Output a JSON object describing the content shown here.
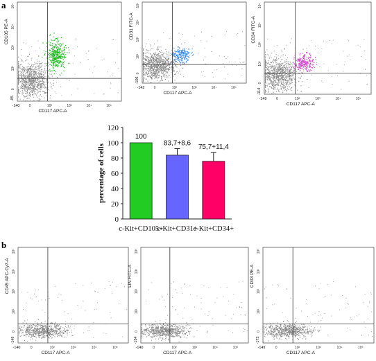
{
  "panel_labels": {
    "a": "a",
    "b": "b"
  },
  "flow_plots": [
    {
      "id": "a1",
      "panel": "a",
      "ylabel": "CD105 PE-A",
      "xlabel": "CD117 APC-A",
      "x_min": "-140",
      "y_min": "-85",
      "highlight_color": "#1fb81f",
      "highlight": "upper-right"
    },
    {
      "id": "a2",
      "panel": "a",
      "ylabel": "CD31 FITC-A",
      "xlabel": "CD117 APC-A",
      "x_min": "-142",
      "y_min": "-106",
      "highlight_color": "#3f8fe8",
      "highlight": "upper-right"
    },
    {
      "id": "a3",
      "panel": "a",
      "ylabel": "CD34 FITC-A",
      "xlabel": "CD117 APC-A",
      "x_min": "-149",
      "y_min": "-114",
      "highlight_color": "#d040c8",
      "highlight": "upper-right"
    },
    {
      "id": "b1",
      "panel": "b",
      "ylabel": "CD45 APC-Cy7-A",
      "xlabel": "CD117 APC-A",
      "x_min": "-140",
      "y_min": "-149",
      "highlight_color": "",
      "highlight": "none"
    },
    {
      "id": "b2",
      "panel": "b",
      "ylabel": "LIN FITC-A",
      "xlabel": "CD117 APC-A",
      "x_min": "-140",
      "y_min": "-134",
      "highlight_color": "",
      "highlight": "none"
    },
    {
      "id": "b3",
      "panel": "b",
      "ylabel": "CD33 PE-A",
      "xlabel": "CD117 APC-A",
      "x_min": "-149",
      "y_min": "-173",
      "highlight_color": "",
      "highlight": "none"
    }
  ],
  "chart_data": {
    "type": "bar",
    "title": "",
    "xlabel": "",
    "ylabel": "percentage of cells",
    "categories": [
      "c-Kit+CD105+",
      "c-Kit+CD31+",
      "c-Kit+CD34+"
    ],
    "values": [
      100,
      83.7,
      75.7
    ],
    "errors": [
      0,
      8.6,
      11.4
    ],
    "data_labels": [
      "100",
      "83,7+8,6",
      "75,7+11,4"
    ],
    "colors": [
      "#22cc22",
      "#6666ff",
      "#ff0066"
    ],
    "ylim": [
      0,
      120
    ],
    "yticks": [
      0,
      20,
      40,
      60,
      80,
      100,
      120
    ],
    "grid": false,
    "legend": "none"
  }
}
